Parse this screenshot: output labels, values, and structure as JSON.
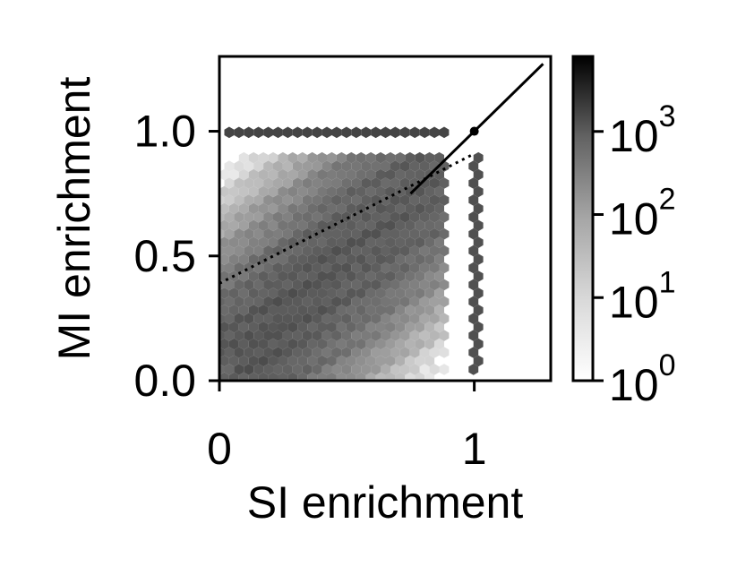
{
  "chart_data": {
    "type": "hexbin",
    "xlabel": "SI enrichment",
    "ylabel": "MI enrichment",
    "xlim": [
      0,
      1.3
    ],
    "ylim": [
      0,
      1.3
    ],
    "x_ticks": [
      {
        "value": 0,
        "label": "0"
      },
      {
        "value": 1,
        "label": "1"
      }
    ],
    "y_ticks": [
      {
        "value": 0.0,
        "label": "0.0"
      },
      {
        "value": 0.5,
        "label": "0.5"
      },
      {
        "value": 1.0,
        "label": "1.0"
      }
    ],
    "colorbar": {
      "scale": "log",
      "range": [
        1,
        8000
      ],
      "colormap": "greys",
      "ticks": [
        {
          "base": "10",
          "exp": "0",
          "value": 1
        },
        {
          "base": "10",
          "exp": "1",
          "value": 10
        },
        {
          "base": "10",
          "exp": "2",
          "value": 100
        },
        {
          "base": "10",
          "exp": "3",
          "value": 1000
        }
      ]
    },
    "identity_line": {
      "x": [
        0.75,
        1.27
      ],
      "y": [
        0.75,
        1.27
      ],
      "style": "solid"
    },
    "fit_line": {
      "x": [
        0,
        1.0
      ],
      "y": [
        0.39,
        0.91
      ],
      "style": "dotted"
    },
    "marker_point": {
      "x": 1.0,
      "y": 1.0
    },
    "density_regions": [
      {
        "name": "main-cloud",
        "x_range": [
          0,
          0.9
        ],
        "y_range": [
          0,
          0.9
        ],
        "peak_count": 300
      },
      {
        "name": "top-ridge",
        "y": 1.0,
        "x_range": [
          0.02,
          0.9
        ],
        "peak_count": 500
      },
      {
        "name": "right-ridge",
        "x": 1.0,
        "y_range": [
          0.02,
          0.9
        ],
        "peak_count": 400
      }
    ]
  }
}
